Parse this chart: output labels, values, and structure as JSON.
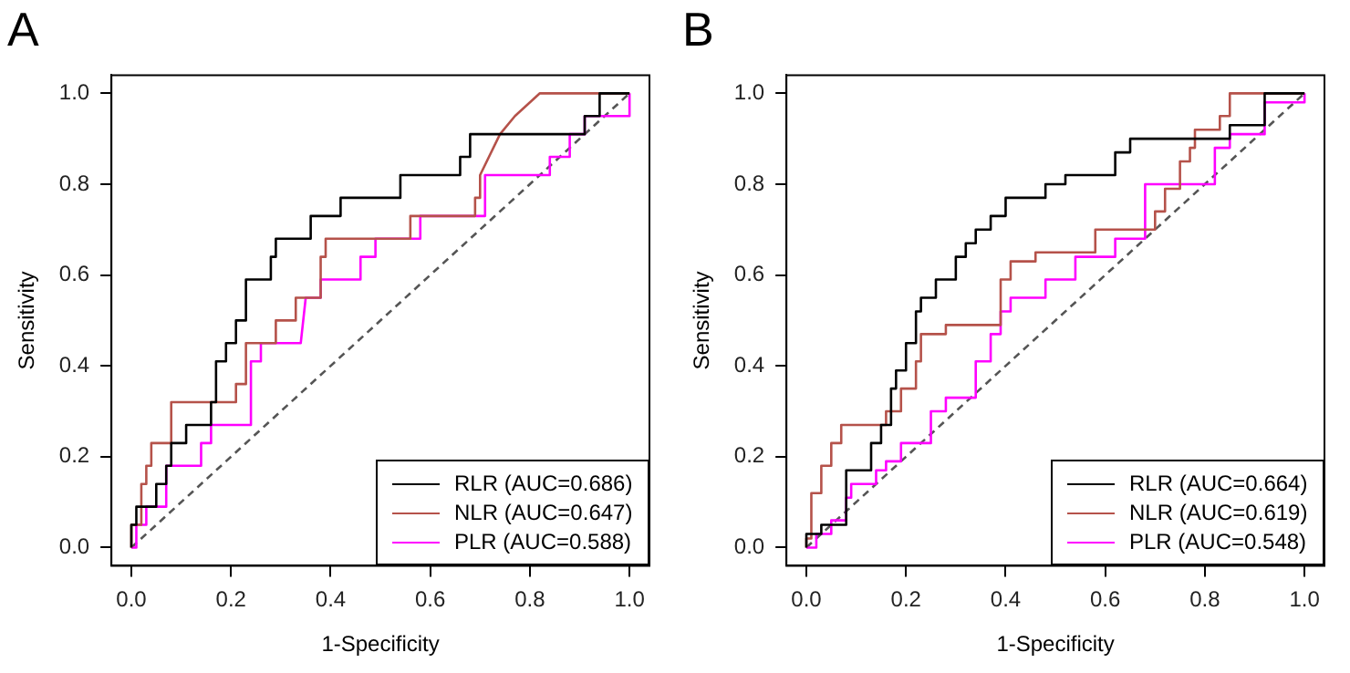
{
  "chart_data": [
    {
      "type": "line",
      "title": "A",
      "xlabel": "1-Specificity",
      "ylabel": "Sensitivity",
      "xlim": [
        -0.04,
        1.04
      ],
      "ylim": [
        -0.04,
        1.04
      ],
      "xticks": [
        {
          "value": 0,
          "label": "0.0"
        },
        {
          "value": 0.2,
          "label": "0.2"
        },
        {
          "value": 0.4,
          "label": "0.4"
        },
        {
          "value": 0.6,
          "label": "0.6"
        },
        {
          "value": 0.8,
          "label": "0.8"
        },
        {
          "value": 1,
          "label": "1.0"
        }
      ],
      "yticks": [
        {
          "value": 0,
          "label": "0.0"
        },
        {
          "value": 0.2,
          "label": "0.2"
        },
        {
          "value": 0.4,
          "label": "0.4"
        },
        {
          "value": 0.6,
          "label": "0.6"
        },
        {
          "value": 0.8,
          "label": "0.8"
        },
        {
          "value": 1,
          "label": "1.0"
        }
      ],
      "grid": false,
      "legend": "bottom right",
      "marker": "none",
      "series": [
        {
          "name": "RLR (AUC=0.686)",
          "color": "#000000",
          "x": [
            0,
            0,
            0.01,
            0.01,
            0.05,
            0.05,
            0.07,
            0.07,
            0.08,
            0.08,
            0.11,
            0.11,
            0.16,
            0.16,
            0.17,
            0.17,
            0.19,
            0.19,
            0.21,
            0.21,
            0.23,
            0.23,
            0.28,
            0.28,
            0.29,
            0.29,
            0.36,
            0.36,
            0.42,
            0.42,
            0.54,
            0.54,
            0.66,
            0.66,
            0.68,
            0.68,
            0.91,
            0.91,
            0.94,
            0.94,
            1
          ],
          "values": [
            0,
            0.05,
            0.05,
            0.09,
            0.09,
            0.14,
            0.14,
            0.18,
            0.18,
            0.23,
            0.23,
            0.27,
            0.27,
            0.32,
            0.32,
            0.41,
            0.41,
            0.45,
            0.45,
            0.5,
            0.5,
            0.59,
            0.59,
            0.64,
            0.64,
            0.68,
            0.68,
            0.73,
            0.73,
            0.77,
            0.77,
            0.82,
            0.82,
            0.86,
            0.86,
            0.91,
            0.91,
            0.95,
            0.95,
            1,
            1
          ]
        },
        {
          "name": "NLR (AUC=0.647)",
          "color": "#b5524a",
          "x": [
            0,
            0,
            0.02,
            0.02,
            0.03,
            0.03,
            0.04,
            0.04,
            0.08,
            0.08,
            0.21,
            0.21,
            0.23,
            0.23,
            0.29,
            0.29,
            0.33,
            0.33,
            0.38,
            0.38,
            0.39,
            0.39,
            0.56,
            0.56,
            0.69,
            0.69,
            0.7,
            0.7,
            0.74,
            0.74,
            0.77,
            0.77,
            0.82,
            0.82,
            1
          ],
          "values": [
            0,
            0.05,
            0.05,
            0.14,
            0.14,
            0.18,
            0.18,
            0.23,
            0.23,
            0.32,
            0.32,
            0.36,
            0.36,
            0.45,
            0.45,
            0.5,
            0.5,
            0.55,
            0.55,
            0.64,
            0.64,
            0.68,
            0.68,
            0.73,
            0.73,
            0.77,
            0.77,
            0.82,
            0.91,
            0.91,
            0.95,
            0.95,
            1,
            1,
            1
          ]
        },
        {
          "name": "PLR (AUC=0.588)",
          "color": "#ff00ff",
          "x": [
            0,
            0.01,
            0.01,
            0.03,
            0.03,
            0.07,
            0.07,
            0.14,
            0.14,
            0.16,
            0.16,
            0.24,
            0.24,
            0.26,
            0.26,
            0.34,
            0.35,
            0.38,
            0.38,
            0.46,
            0.46,
            0.49,
            0.49,
            0.58,
            0.58,
            0.71,
            0.71,
            0.84,
            0.84,
            0.88,
            0.88,
            0.91,
            0.91,
            1,
            1
          ],
          "values": [
            0,
            0,
            0.05,
            0.05,
            0.09,
            0.09,
            0.18,
            0.18,
            0.23,
            0.23,
            0.27,
            0.27,
            0.41,
            0.41,
            0.45,
            0.45,
            0.55,
            0.55,
            0.59,
            0.59,
            0.64,
            0.64,
            0.68,
            0.68,
            0.73,
            0.73,
            0.82,
            0.82,
            0.86,
            0.86,
            0.91,
            0.91,
            0.95,
            0.95,
            1
          ]
        },
        {
          "color": "#555555",
          "line_style": "dashed",
          "x": [
            0,
            1
          ],
          "values": [
            0,
            1
          ]
        }
      ]
    },
    {
      "type": "line",
      "title": "B",
      "xlabel": "1-Specificity",
      "ylabel": "Sensitivity",
      "xlim": [
        -0.04,
        1.04
      ],
      "ylim": [
        -0.04,
        1.04
      ],
      "xticks": [
        {
          "value": 0,
          "label": "0.0"
        },
        {
          "value": 0.2,
          "label": "0.2"
        },
        {
          "value": 0.4,
          "label": "0.4"
        },
        {
          "value": 0.6,
          "label": "0.6"
        },
        {
          "value": 0.8,
          "label": "0.8"
        },
        {
          "value": 1,
          "label": "1.0"
        }
      ],
      "yticks": [
        {
          "value": 0,
          "label": "0.0"
        },
        {
          "value": 0.2,
          "label": "0.2"
        },
        {
          "value": 0.4,
          "label": "0.4"
        },
        {
          "value": 0.6,
          "label": "0.6"
        },
        {
          "value": 0.8,
          "label": "0.8"
        },
        {
          "value": 1,
          "label": "1.0"
        }
      ],
      "grid": false,
      "legend": "bottom right",
      "marker": "none",
      "series": [
        {
          "name": "RLR (AUC=0.664)",
          "color": "#000000",
          "x": [
            0,
            0,
            0.03,
            0.03,
            0.08,
            0.08,
            0.13,
            0.13,
            0.15,
            0.15,
            0.17,
            0.17,
            0.18,
            0.18,
            0.2,
            0.2,
            0.22,
            0.22,
            0.23,
            0.23,
            0.26,
            0.26,
            0.3,
            0.3,
            0.32,
            0.32,
            0.34,
            0.34,
            0.37,
            0.37,
            0.4,
            0.4,
            0.48,
            0.48,
            0.52,
            0.52,
            0.62,
            0.62,
            0.65,
            0.65,
            0.85,
            0.85,
            0.92,
            0.92,
            0.97,
            0.97,
            1
          ],
          "values": [
            0,
            0.03,
            0.03,
            0.05,
            0.05,
            0.17,
            0.17,
            0.23,
            0.23,
            0.27,
            0.27,
            0.35,
            0.35,
            0.39,
            0.39,
            0.45,
            0.45,
            0.52,
            0.52,
            0.55,
            0.55,
            0.59,
            0.59,
            0.64,
            0.64,
            0.67,
            0.67,
            0.7,
            0.7,
            0.73,
            0.73,
            0.77,
            0.77,
            0.8,
            0.8,
            0.82,
            0.82,
            0.87,
            0.87,
            0.9,
            0.9,
            0.93,
            0.93,
            1,
            1,
            1,
            1
          ]
        },
        {
          "name": "NLR (AUC=0.619)",
          "color": "#b5524a",
          "x": [
            0,
            0,
            0.01,
            0.01,
            0.03,
            0.03,
            0.05,
            0.05,
            0.07,
            0.07,
            0.16,
            0.16,
            0.19,
            0.19,
            0.22,
            0.22,
            0.23,
            0.23,
            0.28,
            0.28,
            0.39,
            0.39,
            0.41,
            0.41,
            0.46,
            0.46,
            0.58,
            0.58,
            0.7,
            0.7,
            0.72,
            0.72,
            0.75,
            0.75,
            0.77,
            0.77,
            0.78,
            0.78,
            0.83,
            0.83,
            0.85,
            0.85,
            1
          ],
          "values": [
            0,
            0.02,
            0.02,
            0.12,
            0.12,
            0.18,
            0.18,
            0.23,
            0.23,
            0.27,
            0.27,
            0.3,
            0.3,
            0.35,
            0.35,
            0.41,
            0.41,
            0.47,
            0.47,
            0.49,
            0.49,
            0.59,
            0.59,
            0.63,
            0.63,
            0.65,
            0.65,
            0.7,
            0.7,
            0.74,
            0.74,
            0.79,
            0.79,
            0.85,
            0.85,
            0.88,
            0.88,
            0.92,
            0.92,
            0.95,
            0.95,
            1,
            1
          ]
        },
        {
          "name": "PLR (AUC=0.548)",
          "color": "#ff00ff",
          "x": [
            0,
            0.02,
            0.02,
            0.05,
            0.05,
            0.08,
            0.08,
            0.09,
            0.09,
            0.14,
            0.14,
            0.16,
            0.16,
            0.19,
            0.19,
            0.25,
            0.25,
            0.28,
            0.28,
            0.34,
            0.34,
            0.37,
            0.37,
            0.39,
            0.39,
            0.41,
            0.41,
            0.48,
            0.48,
            0.54,
            0.54,
            0.62,
            0.62,
            0.68,
            0.68,
            0.82,
            0.82,
            0.85,
            0.85,
            0.92,
            0.92,
            1,
            1
          ],
          "values": [
            0,
            0,
            0.03,
            0.03,
            0.06,
            0.06,
            0.11,
            0.11,
            0.14,
            0.14,
            0.17,
            0.17,
            0.19,
            0.19,
            0.23,
            0.23,
            0.3,
            0.3,
            0.33,
            0.33,
            0.41,
            0.41,
            0.47,
            0.47,
            0.52,
            0.52,
            0.55,
            0.55,
            0.59,
            0.59,
            0.64,
            0.64,
            0.68,
            0.68,
            0.8,
            0.8,
            0.88,
            0.88,
            0.91,
            0.91,
            0.98,
            0.98,
            1
          ]
        },
        {
          "color": "#555555",
          "line_style": "dashed",
          "x": [
            0,
            1
          ],
          "values": [
            0,
            1
          ]
        }
      ]
    }
  ]
}
